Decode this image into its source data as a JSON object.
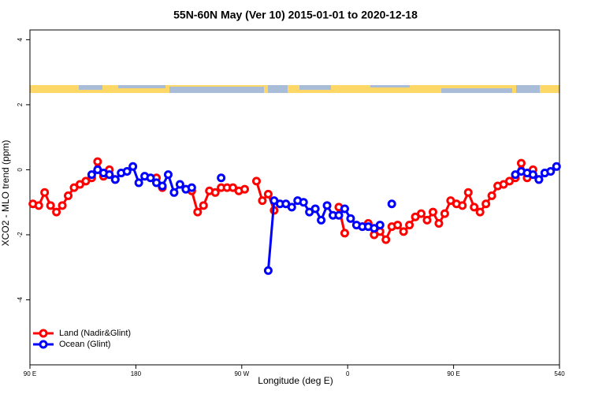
{
  "chart_data": {
    "type": "line",
    "title": "55N-60N May (Ver 10)   2015-01-01 to 2020-12-18",
    "xlabel": "Longitude (deg E)",
    "ylabel": "XCO2 - MLO trend (ppm)",
    "xlim": [
      90,
      540
    ],
    "xticks": [
      {
        "value": 90,
        "label": "90 E"
      },
      180,
      {
        "value": 270,
        "label": "90 W"
      },
      {
        "value": 360,
        "label": "0"
      },
      {
        "value": 450,
        "label": "90 E"
      },
      540
    ],
    "ylim": [
      -6,
      4.3
    ],
    "yticks": [
      -4,
      -2,
      0,
      2,
      4
    ],
    "legend": "bottom-left",
    "x": [
      92.5,
      97.5,
      102.5,
      107.5,
      112.5,
      117.5,
      122.5,
      127.5,
      132.5,
      137.5,
      142.5,
      147.5,
      152.5,
      157.5,
      162.5,
      167.5,
      172.5,
      177.5,
      182.5,
      187.5,
      192.5,
      197.5,
      202.5,
      207.5,
      212.5,
      217.5,
      222.5,
      227.5,
      232.5,
      237.5,
      242.5,
      247.5,
      252.5,
      257.5,
      262.5,
      267.5,
      272.5,
      277.5,
      282.5,
      287.5,
      292.5,
      297.5,
      302.5,
      307.5,
      312.5,
      317.5,
      322.5,
      327.5,
      332.5,
      337.5,
      342.5,
      347.5,
      352.5,
      357.5,
      362.5,
      367.5,
      372.5,
      377.5,
      382.5,
      387.5,
      392.5,
      397.5,
      402.5,
      407.5,
      412.5,
      417.5,
      422.5,
      427.5,
      432.5,
      437.5,
      442.5,
      447.5,
      452.5,
      457.5,
      462.5,
      467.5,
      472.5,
      477.5,
      482.5,
      487.5,
      492.5,
      497.5,
      502.5,
      507.5,
      512.5,
      517.5,
      522.5,
      527.5,
      532.5,
      537.5
    ],
    "series": [
      {
        "name": "Land (Nadir&Glint)",
        "color": "#ff0000",
        "values": [
          -1.05,
          -1.1,
          -0.7,
          -1.1,
          -1.3,
          -1.1,
          -0.8,
          -0.55,
          -0.45,
          -0.35,
          -0.25,
          0.25,
          -0.2,
          0.0,
          -0.3,
          null,
          null,
          null,
          null,
          null,
          null,
          -0.25,
          -0.55,
          null,
          null,
          null,
          null,
          -0.65,
          -1.3,
          -1.1,
          -0.65,
          -0.7,
          -0.55,
          -0.55,
          -0.55,
          -0.65,
          -0.6,
          null,
          -0.35,
          -0.95,
          -0.75,
          -1.25,
          null,
          null,
          null,
          null,
          null,
          null,
          null,
          null,
          null,
          null,
          -1.15,
          -1.95,
          null,
          null,
          -1.75,
          -1.65,
          -2.0,
          -1.9,
          -2.15,
          -1.75,
          -1.7,
          -1.9,
          -1.7,
          -1.45,
          -1.35,
          -1.55,
          -1.3,
          -1.65,
          -1.35,
          -0.95,
          -1.05,
          -1.1,
          -0.7,
          -1.15,
          -1.3,
          -1.05,
          -0.8,
          -0.5,
          -0.45,
          -0.35,
          -0.25,
          0.2,
          -0.25,
          0.0,
          -0.3,
          null,
          null,
          null
        ]
      },
      {
        "name": "Ocean (Glint)",
        "color": "#0000ff",
        "values": [
          null,
          null,
          null,
          null,
          null,
          null,
          null,
          null,
          null,
          null,
          -0.15,
          0.0,
          -0.1,
          -0.15,
          -0.3,
          -0.1,
          -0.05,
          0.1,
          -0.4,
          -0.2,
          -0.25,
          -0.4,
          -0.5,
          -0.15,
          -0.7,
          -0.45,
          -0.6,
          -0.55,
          null,
          null,
          null,
          null,
          -0.25,
          null,
          null,
          null,
          null,
          null,
          null,
          null,
          -3.1,
          -0.95,
          -1.05,
          -1.05,
          -1.15,
          -0.95,
          -1.0,
          -1.3,
          -1.2,
          -1.55,
          -1.1,
          -1.4,
          -1.4,
          -1.2,
          -1.5,
          -1.7,
          -1.75,
          -1.75,
          -1.8,
          -1.7,
          null,
          -1.05,
          null,
          null,
          null,
          null,
          null,
          null,
          null,
          null,
          null,
          null,
          null,
          null,
          null,
          null,
          null,
          null,
          null,
          null,
          null,
          null,
          -0.15,
          -0.05,
          -0.1,
          -0.15,
          -0.3,
          -0.1,
          -0.05,
          0.1
        ]
      }
    ]
  }
}
